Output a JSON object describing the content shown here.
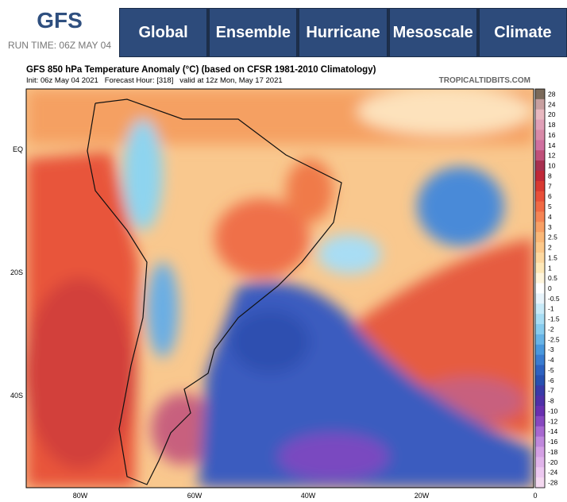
{
  "header": {
    "logo": "GFS",
    "run_time": "RUN TIME: 06Z MAY 04",
    "nav": [
      "Global",
      "Ensemble",
      "Hurricane",
      "Mesoscale",
      "Climate"
    ]
  },
  "map": {
    "title": "GFS 850 hPa Temperature Anomaly (°C) (based on CFSR 1981-2010 Climatology)",
    "subtitle": "Init: 06z May 04 2021   Forecast Hour: [318]   valid at 12z Mon, May 17 2021",
    "watermark": "TROPICALTIDBITS.COM",
    "lat_labels": [
      "EQ",
      "20S",
      "40S"
    ],
    "lon_labels": [
      "80W",
      "60W",
      "40W",
      "20W",
      "0"
    ],
    "colorbar": {
      "levels": [
        28,
        24,
        20,
        18,
        16,
        14,
        12,
        10,
        8,
        7,
        6,
        5,
        4,
        3,
        2.5,
        2,
        1.5,
        1,
        0.5,
        0,
        -0.5,
        -1,
        -1.5,
        -2,
        -2.5,
        -3,
        -4,
        -5,
        -6,
        -7,
        -8,
        -10,
        -12,
        -14,
        -16,
        -18,
        -20,
        -24,
        -28
      ],
      "colors": [
        "#7b6a5a",
        "#c8a0a0",
        "#e8b8c0",
        "#e0a0b8",
        "#d88aa8",
        "#d070a0",
        "#c0507a",
        "#a83050",
        "#c02838",
        "#d83a32",
        "#e8503a",
        "#f06a45",
        "#f58555",
        "#f8a065",
        "#fab878",
        "#fcc88a",
        "#fdd8a0",
        "#fee8b8",
        "#fff5dc",
        "#ffffff",
        "#e8f4fb",
        "#c8eaf8",
        "#a8ddf4",
        "#88ccee",
        "#68b4e6",
        "#4a98dc",
        "#3a7cd0",
        "#2e62c0",
        "#2850b0",
        "#3a3aa8",
        "#5030a8",
        "#6a30b0",
        "#8848c0",
        "#a868d0",
        "#c088dc",
        "#d4a0e4",
        "#e0b4ea",
        "#ecc8f0",
        "#f4d8f0"
      ]
    }
  }
}
